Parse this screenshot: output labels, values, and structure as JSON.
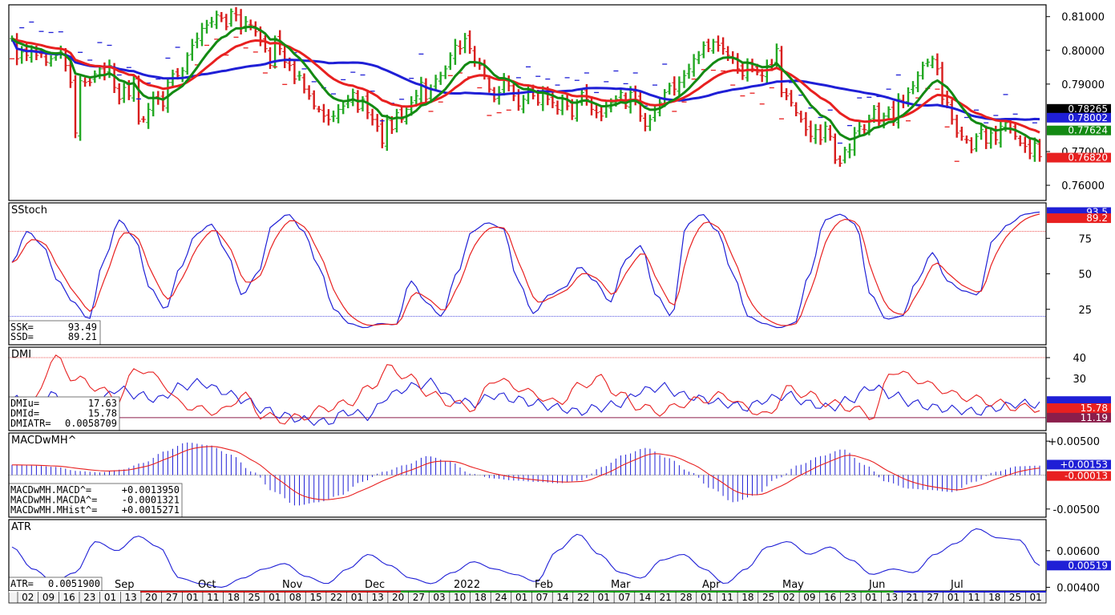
{
  "panels": {
    "price": {
      "y_ticks": [
        "0.81000",
        "0.80000",
        "0.79000",
        "0.77000",
        "0.76000"
      ],
      "labels": [
        {
          "text": "0.78265",
          "value": 0.78265,
          "color": "#000000"
        },
        {
          "text": "0.78002",
          "value": 0.78002,
          "color": "#1f1fd6"
        },
        {
          "text": "0.77624",
          "value": 0.77624,
          "color": "#138a13"
        },
        {
          "text": "0.76820",
          "value": 0.7682,
          "color": "#e82020"
        }
      ]
    },
    "sstoch": {
      "title": "SStoch",
      "y_ticks": [
        "75",
        "50",
        "25"
      ],
      "readout": [
        {
          "label": "SSK=",
          "value": "93.49"
        },
        {
          "label": "SSD=",
          "value": "89.21"
        }
      ],
      "labels": [
        {
          "text": "93.5",
          "value": 93.5,
          "color": "#1f1fd6"
        },
        {
          "text": "89.2",
          "value": 89.2,
          "color": "#e82020"
        }
      ]
    },
    "dmi": {
      "title": "DMI",
      "y_ticks": [
        "40",
        "30"
      ],
      "readout": [
        {
          "label": "DMIu=",
          "value": "17.63"
        },
        {
          "label": "DMId=",
          "value": "15.78"
        },
        {
          "label": "DMIATR=",
          "value": "0.0058709"
        }
      ],
      "labels": [
        {
          "text": "15.78",
          "value": 15.78,
          "color": "#e82020"
        },
        {
          "text": "11.19",
          "value": 11.19,
          "color": "#8b1e4b"
        }
      ]
    },
    "macd": {
      "title": "MACDwMH^",
      "y_ticks": [
        "+0.00500",
        "-0.00500"
      ],
      "readout": [
        {
          "label": "MACDwMH.MACD^=",
          "value": "+0.0013950"
        },
        {
          "label": "MACDwMH.MACDA^=",
          "value": "-0.0001321"
        },
        {
          "label": "MACDwMH.MHist^=",
          "value": "+0.0015271"
        }
      ],
      "labels": [
        {
          "text": "+0.00153",
          "value": 0.00153,
          "color": "#1f1fd6"
        },
        {
          "text": "-0.00013",
          "value": -0.00013,
          "color": "#e82020"
        }
      ]
    },
    "atr": {
      "title": "ATR",
      "y_ticks": [
        "0.00600",
        "0.00400"
      ],
      "readout": [
        {
          "label": "ATR=",
          "value": "0.0051900"
        }
      ],
      "labels": [
        {
          "text": "0.00519",
          "value": 0.00519,
          "color": "#1f1fd6"
        }
      ]
    }
  },
  "x_axis": {
    "months": [
      "Sep",
      "Oct",
      "Nov",
      "Dec",
      "2022",
      "Feb",
      "Mar",
      "Apr",
      "May",
      "Jun",
      "Jul"
    ],
    "days": [
      "02",
      "09",
      "16",
      "23",
      "01",
      "13",
      "20",
      "27",
      "01",
      "11",
      "18",
      "25",
      "01",
      "08",
      "15",
      "22",
      "01",
      "13",
      "20",
      "27",
      "03",
      "10",
      "18",
      "24",
      "01",
      "07",
      "14",
      "22",
      "01",
      "07",
      "14",
      "21",
      "28",
      "01",
      "11",
      "18",
      "25",
      "02",
      "09",
      "16",
      "23",
      "01",
      "13",
      "21",
      "27",
      "01",
      "11",
      "18",
      "25",
      "01"
    ]
  },
  "chart_data": [
    {
      "type": "bar",
      "name": "price",
      "style": "ohlc bars with moving averages and parabolic SAR",
      "ylim": [
        0.7555,
        0.8135
      ],
      "closes": [
        0.8035,
        0.7975,
        0.7995,
        0.7985,
        0.8,
        0.7985,
        0.799,
        0.7965,
        0.7975,
        0.7985,
        0.7995,
        0.7955,
        0.7905,
        0.7755,
        0.791,
        0.7905,
        0.7905,
        0.793,
        0.7945,
        0.793,
        0.7955,
        0.789,
        0.7855,
        0.789,
        0.7865,
        0.7915,
        0.779,
        0.7795,
        0.7825,
        0.786,
        0.7855,
        0.7835,
        0.7905,
        0.793,
        0.7925,
        0.794,
        0.7985,
        0.8015,
        0.8035,
        0.8065,
        0.8075,
        0.8085,
        0.8105,
        0.8095,
        0.807,
        0.8115,
        0.8105,
        0.8065,
        0.8085,
        0.8075,
        0.8055,
        0.8025,
        0.8005,
        0.7955,
        0.8035,
        0.8005,
        0.7965,
        0.7955,
        0.7915,
        0.7925,
        0.7885,
        0.7865,
        0.7835,
        0.7825,
        0.7805,
        0.7795,
        0.7805,
        0.7825,
        0.7835,
        0.7855,
        0.7875,
        0.7825,
        0.7855,
        0.7815,
        0.7795,
        0.7775,
        0.7725,
        0.7795,
        0.7765,
        0.7815,
        0.7795,
        0.7825,
        0.7845,
        0.7865,
        0.7905,
        0.7855,
        0.7885,
        0.7915,
        0.7925,
        0.7945,
        0.7985,
        0.8015,
        0.8005,
        0.8035,
        0.8005,
        0.7965,
        0.7955,
        0.7925,
        0.7885,
        0.7855,
        0.7875,
        0.7915,
        0.7895,
        0.7865,
        0.7835,
        0.7855,
        0.7885,
        0.7865,
        0.7845,
        0.7875,
        0.7855,
        0.7845,
        0.7825,
        0.7855,
        0.7835,
        0.7805,
        0.7845,
        0.7875,
        0.7855,
        0.7825,
        0.7815,
        0.7805,
        0.7835,
        0.7845,
        0.7855,
        0.7875,
        0.7835,
        0.7875,
        0.7855,
        0.7805,
        0.7775,
        0.7795,
        0.7825,
        0.7845,
        0.7875,
        0.7895,
        0.7885,
        0.7905,
        0.7925,
        0.7945,
        0.7975,
        0.7985,
        0.8015,
        0.8005,
        0.8025,
        0.8015,
        0.8005,
        0.7985,
        0.7975,
        0.7945,
        0.7925,
        0.7965,
        0.7945,
        0.7935,
        0.7925,
        0.7955,
        0.7955,
        0.8005,
        0.7875,
        0.7865,
        0.7845,
        0.7815,
        0.7795,
        0.7765,
        0.7745,
        0.7765,
        0.7735,
        0.7775,
        0.7745,
        0.7675,
        0.7665,
        0.7705,
        0.7705,
        0.7755,
        0.7775,
        0.7765,
        0.7795,
        0.7825,
        0.7785,
        0.7805,
        0.7825,
        0.7795,
        0.7855,
        0.7845,
        0.7875,
        0.7895,
        0.7925,
        0.7955,
        0.7965,
        0.7975,
        0.7945,
        0.7855,
        0.7845,
        0.7795,
        0.7755,
        0.7745,
        0.7735,
        0.7705,
        0.7745,
        0.7765,
        0.7725,
        0.7755,
        0.7735,
        0.7775,
        0.7785,
        0.7765,
        0.7745,
        0.7725,
        0.7715,
        0.7695,
        0.7725,
        0.7685,
        0.7715,
        0.7615,
        0.7625,
        0.7685,
        0.7715,
        0.7745,
        0.7755,
        0.7775,
        0.7785,
        0.7765,
        0.7795,
        0.7785,
        0.7805,
        0.7815,
        0.7805,
        0.7826
      ]
    },
    {
      "type": "line",
      "name": "SStoch",
      "ylim": [
        0,
        100
      ],
      "series": [
        {
          "name": "SSK",
          "values": [
            93.49
          ]
        },
        {
          "name": "SSD",
          "values": [
            89.21
          ]
        }
      ],
      "reference_levels": [
        80,
        20
      ]
    },
    {
      "type": "line",
      "name": "DMI",
      "ylim": [
        5,
        45
      ],
      "series": [
        {
          "name": "DMIu",
          "values": [
            17.63
          ]
        },
        {
          "name": "DMId",
          "values": [
            15.78
          ]
        }
      ],
      "reference_levels": [
        40,
        11.19
      ]
    },
    {
      "type": "bar",
      "name": "MACDwMH",
      "ylim": [
        -0.0062,
        0.0062
      ],
      "series": [
        {
          "name": "MACD",
          "values": [
            0.001395
          ]
        },
        {
          "name": "MACDA",
          "values": [
            -0.0001321
          ]
        },
        {
          "name": "MHist",
          "values": [
            0.0015271
          ]
        }
      ]
    },
    {
      "type": "line",
      "name": "ATR",
      "ylim": [
        0.0038,
        0.0077
      ],
      "series": [
        {
          "name": "ATR",
          "values": [
            0.00519
          ]
        }
      ]
    }
  ],
  "colors": {
    "blue": "#1f1fd6",
    "red": "#e82020",
    "green": "#138a13",
    "bg": "#ffffff",
    "frame": "#000000"
  }
}
